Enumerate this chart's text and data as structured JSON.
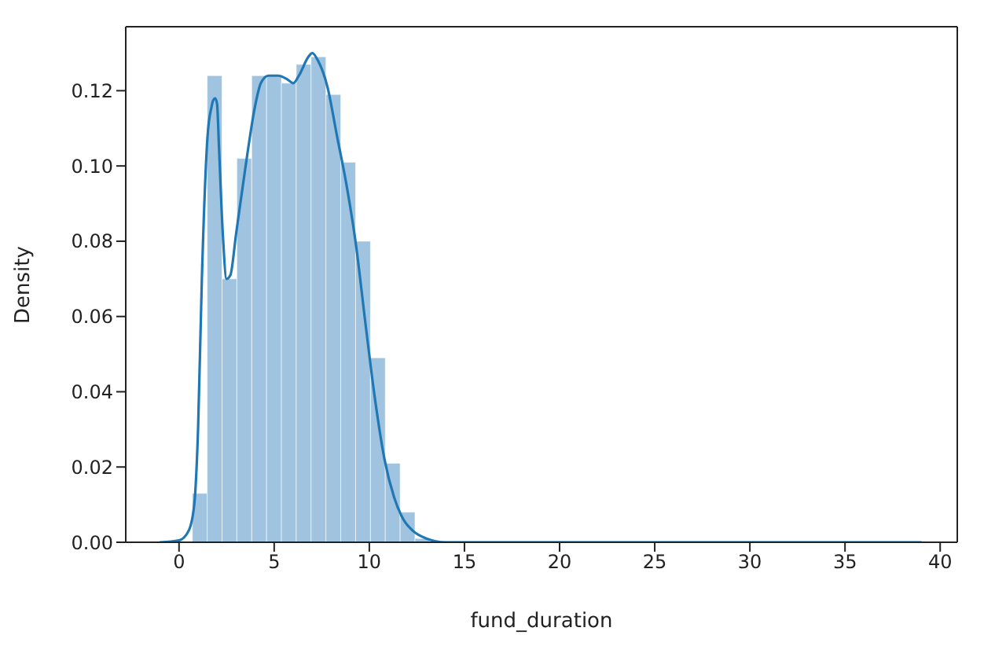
{
  "chart_data": {
    "type": "histogram",
    "xlabel": "fund_duration",
    "ylabel": "Density",
    "bins": [
      0.7,
      1.48,
      2.26,
      3.04,
      3.82,
      4.6,
      5.38,
      6.16,
      6.94,
      7.72,
      8.5,
      9.28,
      10.06,
      10.84,
      11.62,
      12.4,
      13.18,
      13.96,
      14.74,
      15.52,
      16.3,
      17.08,
      17.86,
      18.64,
      19.42,
      20.2,
      20.98,
      21.76,
      22.54,
      23.32,
      24.1,
      24.88,
      25.66,
      26.44,
      27.22,
      28.0,
      28.78,
      29.56,
      30.34,
      31.12,
      31.9,
      32.68,
      33.46,
      34.24,
      35.02,
      35.8,
      36.58,
      37.36,
      38.14,
      38.92
    ],
    "values": [
      0.013,
      0.124,
      0.07,
      0.102,
      0.124,
      0.124,
      0.122,
      0.127,
      0.129,
      0.119,
      0.101,
      0.08,
      0.049,
      0.021,
      0.008,
      0.001,
      0,
      0,
      0,
      0,
      0,
      0,
      0,
      0,
      0,
      0,
      0,
      0,
      0,
      0,
      0,
      0,
      0,
      0,
      0,
      0,
      0,
      0,
      0,
      0,
      0,
      0,
      0,
      0,
      0,
      0,
      0,
      0,
      0
    ],
    "color": "#a0c3df",
    "series": [
      {
        "type": "line",
        "color": "#1f77b4",
        "x": [
          -1,
          0,
          0.5,
          0.8,
          1.0,
          1.2,
          1.5,
          1.7,
          1.8,
          1.9,
          2.0,
          2.1,
          2.3,
          2.5,
          2.7,
          3.0,
          3.5,
          4.0,
          4.3,
          4.7,
          5.2,
          5.7,
          6.0,
          6.3,
          6.8,
          7.0,
          7.3,
          7.8,
          8.3,
          8.8,
          9.3,
          9.8,
          10.3,
          10.8,
          11.3,
          11.8,
          12.3,
          13,
          14,
          39
        ],
        "values": [
          0,
          0.0005,
          0.003,
          0.01,
          0.03,
          0.07,
          0.108,
          0.1155,
          0.1175,
          0.118,
          0.1165,
          0.105,
          0.082,
          0.07,
          0.071,
          0.082,
          0.1,
          0.116,
          0.122,
          0.124,
          0.124,
          0.123,
          0.122,
          0.124,
          0.129,
          0.13,
          0.128,
          0.121,
          0.108,
          0.095,
          0.079,
          0.058,
          0.038,
          0.022,
          0.012,
          0.006,
          0.003,
          0.001,
          0,
          0
        ]
      }
    ],
    "xlim": [
      -2.8,
      40.9
    ],
    "ylim": [
      0,
      0.137
    ],
    "xticks": [
      0,
      5,
      10,
      15,
      20,
      25,
      30,
      35,
      40
    ],
    "yticks": [
      {
        "value": 0,
        "label": "0.00"
      },
      {
        "value": 0.02,
        "label": "0.02"
      },
      {
        "value": 0.04,
        "label": "0.04"
      },
      {
        "value": 0.06,
        "label": "0.06"
      },
      {
        "value": 0.08,
        "label": "0.08"
      },
      {
        "value": 0.1,
        "label": "0.10"
      },
      {
        "value": 0.12,
        "label": "0.12"
      }
    ],
    "grid": false,
    "marker": "none",
    "line_style": "solid"
  }
}
